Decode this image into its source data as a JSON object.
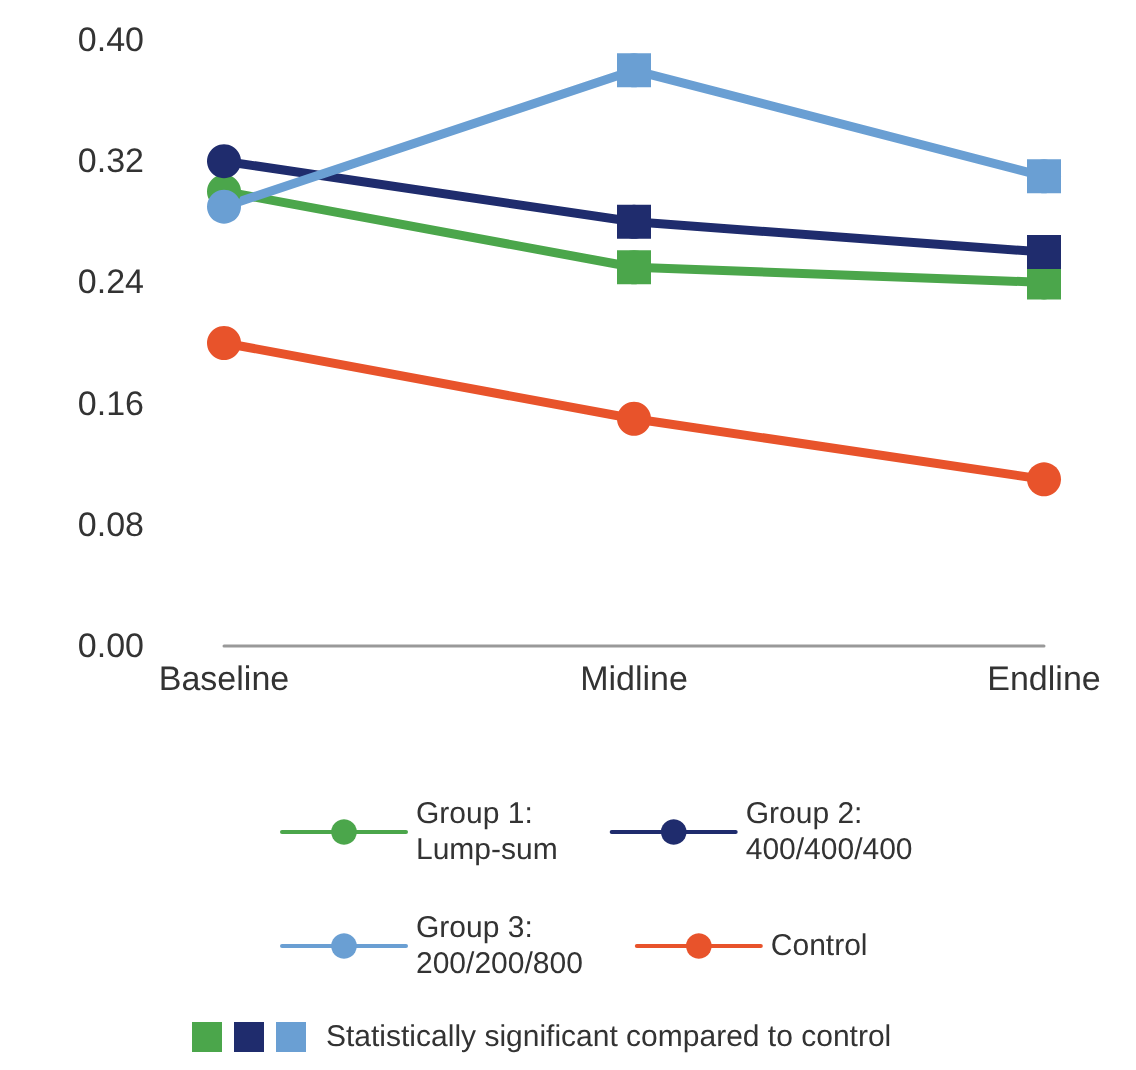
{
  "chart_data": {
    "type": "line",
    "categories": [
      "Baseline",
      "Midline",
      "Endline"
    ],
    "series": [
      {
        "name": "Group 1: Lump-sum",
        "color": "#4ba64b",
        "values": [
          0.3,
          0.25,
          0.24
        ]
      },
      {
        "name": "Group 2: 400/400/400",
        "color": "#1f2c6d",
        "values": [
          0.32,
          0.28,
          0.26
        ]
      },
      {
        "name": "Group 3: 200/200/800",
        "color": "#6a9fd3",
        "values": [
          0.29,
          0.38,
          0.31
        ]
      },
      {
        "name": "Control",
        "color": "#e8532b",
        "values": [
          0.2,
          0.15,
          0.11
        ]
      },
      {
        "type": "scatter",
        "marker": "square",
        "color": "#4ba64b",
        "x": [
          "Midline",
          "Endline"
        ],
        "values": [
          0.25,
          0.24
        ]
      },
      {
        "type": "scatter",
        "marker": "square",
        "color": "#1f2c6d",
        "x": [
          "Midline",
          "Endline"
        ],
        "values": [
          0.28,
          0.26
        ]
      },
      {
        "type": "scatter",
        "marker": "square",
        "color": "#6a9fd3",
        "x": [
          "Midline",
          "Endline"
        ],
        "values": [
          0.38,
          0.31
        ]
      }
    ],
    "ylim": [
      0,
      0.4
    ],
    "yticks": [
      {
        "value": 0,
        "label": "0.00"
      },
      {
        "value": 0.08,
        "label": "0.08"
      },
      {
        "value": 0.16,
        "label": "0.16"
      },
      {
        "value": 0.24,
        "label": "0.24"
      },
      {
        "value": 0.32,
        "label": "0.32"
      },
      {
        "value": 0.4,
        "label": "0.40"
      }
    ],
    "grid": false,
    "legend": "bottom",
    "marker": "circle",
    "annotations": [
      "Statistically significant compared to control"
    ]
  }
}
